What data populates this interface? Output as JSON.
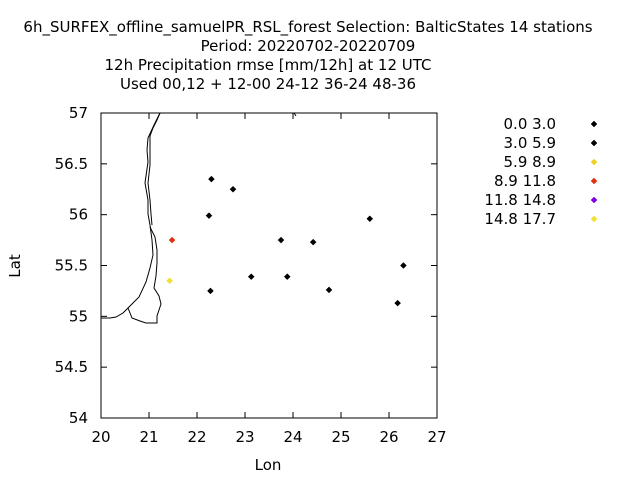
{
  "chart_data": {
    "type": "scatter",
    "title_lines": [
      "6h_SURFEX_offline_samuelPR_RSL_forest   Selection: BalticStates     14 stations",
      "Period: 20220702-20220709",
      "12h Precipitation rmse [mm/12h] at  12 UTC",
      "Used  00,12  + 12-00 24-12 36-24 48-36"
    ],
    "xlabel": "Lon",
    "ylabel": "Lat",
    "xlim": [
      20,
      27
    ],
    "ylim": [
      54,
      57
    ],
    "xticks": [
      "20",
      "21",
      "22",
      "23",
      "24",
      "25",
      "26",
      "27"
    ],
    "yticks": [
      "54",
      "54.5",
      "55",
      "55.5",
      "56",
      "56.5",
      "57"
    ],
    "legend_position": "right",
    "legend": [
      {
        "label": "0.0 3.0",
        "color": "#000000"
      },
      {
        "label": "3.0 5.9",
        "color": "#000000"
      },
      {
        "label": "5.9 8.9",
        "color": "#f0d020"
      },
      {
        "label": "8.9 11.8",
        "color": "#e03010"
      },
      {
        "label": "11.8 14.8",
        "color": "#8000e0"
      },
      {
        "label": "14.8 17.7",
        "color": "#f0e030"
      }
    ],
    "points": [
      {
        "x": 22.3,
        "y": 56.35,
        "bin": 1
      },
      {
        "x": 22.75,
        "y": 56.25,
        "bin": 1
      },
      {
        "x": 22.25,
        "y": 55.99,
        "bin": 1
      },
      {
        "x": 25.6,
        "y": 55.96,
        "bin": 1
      },
      {
        "x": 23.75,
        "y": 55.75,
        "bin": 1
      },
      {
        "x": 24.42,
        "y": 55.73,
        "bin": 1
      },
      {
        "x": 21.48,
        "y": 55.75,
        "bin": 3
      },
      {
        "x": 26.3,
        "y": 55.5,
        "bin": 1
      },
      {
        "x": 23.13,
        "y": 55.39,
        "bin": 1
      },
      {
        "x": 23.88,
        "y": 55.39,
        "bin": 1
      },
      {
        "x": 21.43,
        "y": 55.35,
        "bin": 5
      },
      {
        "x": 22.28,
        "y": 55.25,
        "bin": 1
      },
      {
        "x": 24.75,
        "y": 55.26,
        "bin": 1
      },
      {
        "x": 26.18,
        "y": 55.13,
        "bin": 1
      }
    ]
  }
}
